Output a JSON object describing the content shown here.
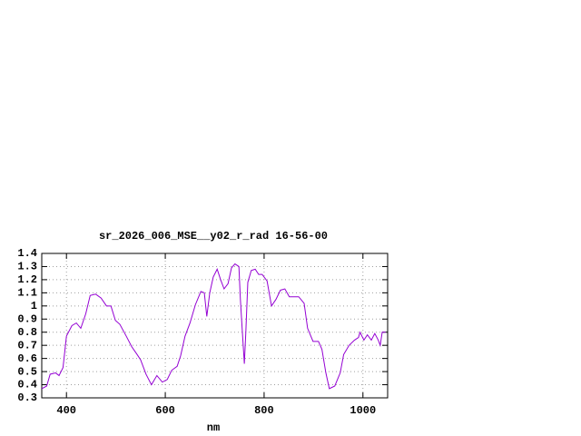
{
  "chart_data": {
    "type": "line",
    "title": "sr_2026_006_MSE__y02_r_rad 16-56-00",
    "x_label": "nm",
    "x": [
      350,
      360,
      367,
      378,
      385,
      393,
      400,
      411,
      420,
      429,
      439,
      448,
      459,
      470,
      481,
      490,
      499,
      508,
      521,
      532,
      543,
      550,
      561,
      572,
      583,
      594,
      604,
      613,
      624,
      631,
      640,
      650,
      661,
      672,
      679,
      684,
      690,
      697,
      705,
      712,
      719,
      727,
      734,
      741,
      749,
      752,
      756,
      760,
      763,
      767,
      774,
      782,
      789,
      796,
      806,
      815,
      824,
      833,
      842,
      851,
      860,
      870,
      881,
      888,
      899,
      910,
      917,
      925,
      932,
      943,
      954,
      961,
      972,
      983,
      991,
      994,
      1002,
      1009,
      1017,
      1024,
      1031,
      1035,
      1039,
      1046
    ],
    "values": [
      0.37,
      0.39,
      0.48,
      0.49,
      0.47,
      0.53,
      0.77,
      0.85,
      0.87,
      0.83,
      0.94,
      1.08,
      1.09,
      1.06,
      1.0,
      1.0,
      0.89,
      0.86,
      0.77,
      0.69,
      0.63,
      0.59,
      0.48,
      0.4,
      0.47,
      0.42,
      0.44,
      0.51,
      0.54,
      0.62,
      0.77,
      0.87,
      1.01,
      1.11,
      1.1,
      0.92,
      1.1,
      1.22,
      1.28,
      1.2,
      1.13,
      1.17,
      1.29,
      1.32,
      1.3,
      1.05,
      0.8,
      0.56,
      0.8,
      1.18,
      1.27,
      1.28,
      1.24,
      1.24,
      1.19,
      1.0,
      1.05,
      1.12,
      1.13,
      1.07,
      1.07,
      1.07,
      1.02,
      0.83,
      0.73,
      0.73,
      0.67,
      0.49,
      0.37,
      0.39,
      0.49,
      0.63,
      0.7,
      0.74,
      0.76,
      0.8,
      0.74,
      0.78,
      0.74,
      0.79,
      0.74,
      0.7,
      0.8,
      0.8
    ],
    "color": "#9400d3",
    "xlim": [
      350,
      1050
    ],
    "xticks": [
      400,
      600,
      800,
      1000
    ],
    "ylim": [
      0.3,
      1.4
    ],
    "yticks": [
      0.3,
      0.4,
      0.5,
      0.6,
      0.7,
      0.8,
      0.9,
      1,
      1.1,
      1.2,
      1.3,
      1.4
    ],
    "grid": true
  }
}
